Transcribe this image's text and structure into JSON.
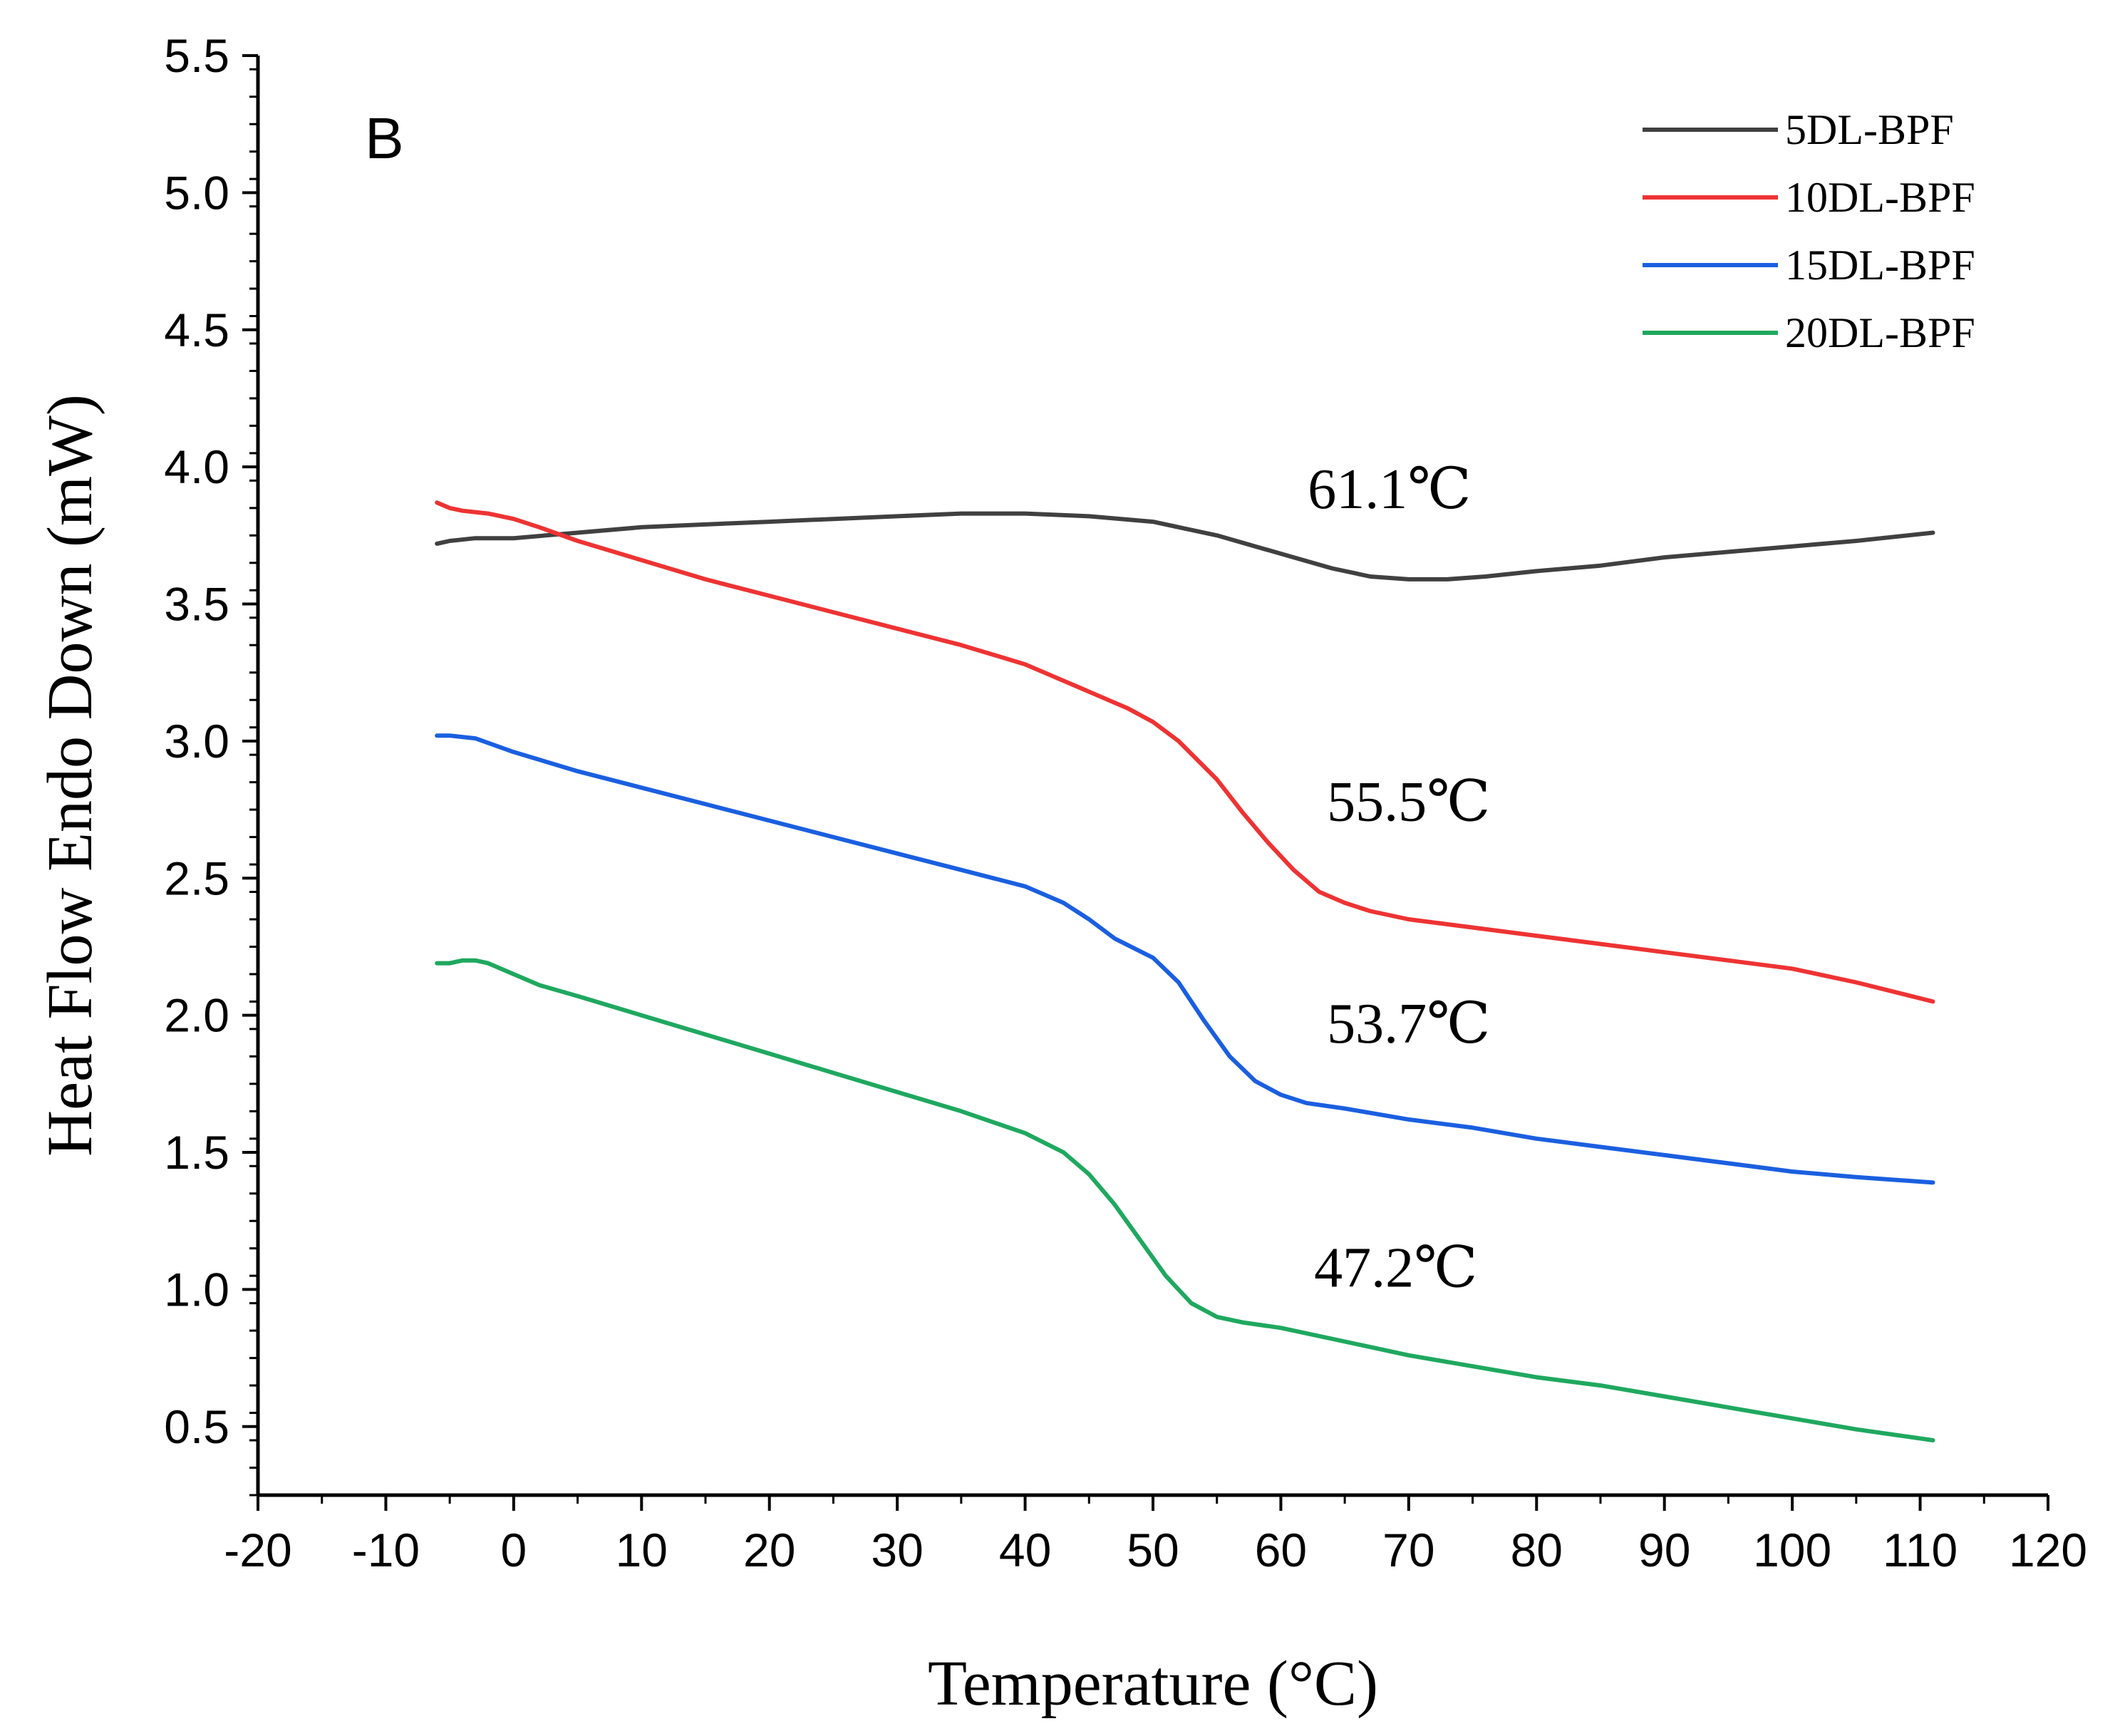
{
  "chart_data": {
    "type": "line",
    "panel_label": "B",
    "xlabel": "Temperature (°C)",
    "ylabel": "Heat Flow Endo Down (mW)",
    "xlim": [
      -20,
      120
    ],
    "ylim": [
      0.25,
      5.5
    ],
    "x_ticks": [
      -20,
      -10,
      0,
      10,
      20,
      30,
      40,
      50,
      60,
      70,
      80,
      90,
      100,
      110,
      120
    ],
    "x_tick_labels": [
      "-20",
      "-10",
      "0",
      "10",
      "20",
      "30",
      "40",
      "50",
      "60",
      "70",
      "80",
      "90",
      "100",
      "110",
      "120"
    ],
    "y_ticks": [
      0.5,
      1.0,
      1.5,
      2.0,
      2.5,
      3.0,
      3.5,
      4.0,
      4.5,
      5.0,
      5.5
    ],
    "y_tick_labels": [
      "0.5",
      "1.0",
      "1.5",
      "2.0",
      "2.5",
      "3.0",
      "3.5",
      "4.0",
      "4.5",
      "5.0",
      "5.5"
    ],
    "legend_position": "top-right",
    "series": [
      {
        "name": "5DL-BPF",
        "color": "#404040",
        "x": [
          -6,
          -5,
          -3,
          0,
          5,
          10,
          15,
          20,
          25,
          30,
          35,
          40,
          45,
          50,
          55,
          58,
          61,
          64,
          67,
          70,
          73,
          76,
          80,
          85,
          90,
          95,
          100,
          105,
          111
        ],
        "y": [
          3.72,
          3.73,
          3.74,
          3.74,
          3.76,
          3.78,
          3.79,
          3.8,
          3.81,
          3.82,
          3.83,
          3.83,
          3.82,
          3.8,
          3.75,
          3.71,
          3.67,
          3.63,
          3.6,
          3.59,
          3.59,
          3.6,
          3.62,
          3.64,
          3.67,
          3.69,
          3.71,
          3.73,
          3.76
        ]
      },
      {
        "name": "10DL-BPF",
        "color": "#ee3333",
        "x": [
          -6,
          -5,
          -4,
          -2,
          0,
          2,
          5,
          10,
          15,
          20,
          25,
          30,
          35,
          40,
          43,
          45,
          48,
          50,
          52,
          55,
          57,
          59,
          61,
          63,
          65,
          67,
          70,
          75,
          80,
          85,
          90,
          95,
          100,
          105,
          111
        ],
        "y": [
          3.87,
          3.85,
          3.84,
          3.83,
          3.81,
          3.78,
          3.73,
          3.66,
          3.59,
          3.53,
          3.47,
          3.41,
          3.35,
          3.28,
          3.22,
          3.18,
          3.12,
          3.07,
          3.0,
          2.86,
          2.74,
          2.63,
          2.53,
          2.45,
          2.41,
          2.38,
          2.35,
          2.32,
          2.29,
          2.26,
          2.23,
          2.2,
          2.17,
          2.12,
          2.05
        ]
      },
      {
        "name": "15DL-BPF",
        "color": "#1a5fe0",
        "x": [
          -6,
          -5,
          -3,
          0,
          5,
          10,
          15,
          20,
          25,
          30,
          35,
          40,
          43,
          45,
          47,
          50,
          52,
          54,
          56,
          58,
          60,
          62,
          65,
          70,
          75,
          80,
          85,
          90,
          95,
          100,
          105,
          111
        ],
        "y": [
          3.02,
          3.02,
          3.01,
          2.96,
          2.89,
          2.83,
          2.77,
          2.71,
          2.65,
          2.59,
          2.53,
          2.47,
          2.41,
          2.35,
          2.28,
          2.21,
          2.12,
          1.98,
          1.85,
          1.76,
          1.71,
          1.68,
          1.66,
          1.62,
          1.59,
          1.55,
          1.52,
          1.49,
          1.46,
          1.43,
          1.41,
          1.39
        ]
      },
      {
        "name": "20DL-BPF",
        "color": "#1fa85f",
        "x": [
          -6,
          -5,
          -4,
          -3,
          -2,
          0,
          2,
          5,
          10,
          15,
          20,
          25,
          30,
          35,
          40,
          43,
          45,
          47,
          49,
          51,
          53,
          55,
          57,
          60,
          65,
          70,
          75,
          80,
          85,
          90,
          95,
          100,
          105,
          111
        ],
        "y": [
          2.19,
          2.19,
          2.2,
          2.2,
          2.19,
          2.15,
          2.11,
          2.07,
          2.0,
          1.93,
          1.86,
          1.79,
          1.72,
          1.65,
          1.57,
          1.5,
          1.42,
          1.31,
          1.18,
          1.05,
          0.95,
          0.9,
          0.88,
          0.86,
          0.81,
          0.76,
          0.72,
          0.68,
          0.65,
          0.61,
          0.57,
          0.53,
          0.49,
          0.45
        ]
      }
    ],
    "annotations": [
      {
        "text": "61.1℃",
        "x": 68.5,
        "y": 3.85
      },
      {
        "text": "55.5℃",
        "x": 70,
        "y": 2.71
      },
      {
        "text": "53.7℃",
        "x": 70,
        "y": 1.9
      },
      {
        "text": "47.2℃",
        "x": 69,
        "y": 1.01
      }
    ]
  }
}
